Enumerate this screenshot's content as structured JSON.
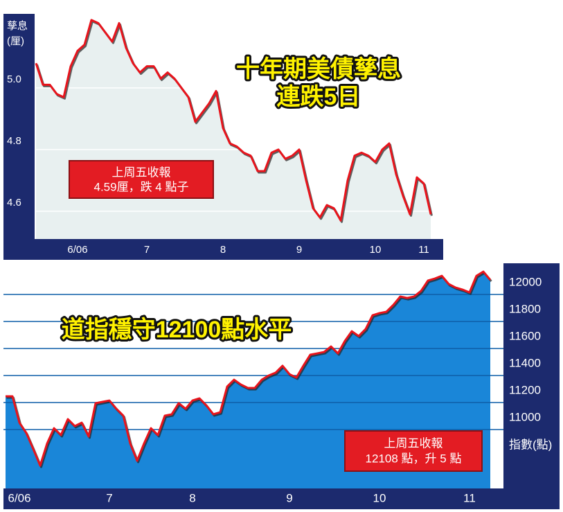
{
  "chart_data": [
    {
      "type": "line",
      "title": "十年期美債孳息",
      "subtitle": "連跌5日",
      "y_label": [
        "孳息",
        "(厘)"
      ],
      "annotation": [
        "上周五收報",
        "4.59厘，跌 4 點子"
      ],
      "categories": [
        null,
        null,
        null,
        null,
        null,
        null,
        "6/06",
        null,
        null,
        null,
        null,
        null,
        null,
        null,
        null,
        null,
        "7",
        null,
        null,
        null,
        null,
        null,
        null,
        null,
        null,
        null,
        null,
        "8",
        null,
        null,
        null,
        null,
        null,
        null,
        null,
        null,
        null,
        null,
        "9",
        null,
        null,
        null,
        null,
        null,
        null,
        null,
        null,
        null,
        null,
        "10",
        null,
        null,
        null,
        null,
        null,
        null,
        "11",
        null
      ],
      "series": [
        {
          "color": "#e8141c",
          "area_color": "#e8f0f0",
          "values": [
            5.08,
            5.01,
            5.01,
            4.98,
            4.97,
            5.07,
            5.12,
            5.14,
            5.22,
            5.21,
            5.18,
            5.15,
            5.21,
            5.13,
            5.08,
            5.05,
            5.07,
            5.07,
            5.03,
            5.05,
            5.03,
            5.0,
            4.97,
            4.89,
            4.92,
            4.95,
            4.99,
            4.87,
            4.82,
            4.81,
            4.79,
            4.78,
            4.73,
            4.73,
            4.79,
            4.8,
            4.77,
            4.78,
            4.8,
            4.7,
            4.61,
            4.58,
            4.62,
            4.61,
            4.57,
            4.7,
            4.78,
            4.79,
            4.78,
            4.76,
            4.8,
            4.82,
            4.72,
            4.65,
            4.59,
            4.71,
            4.69,
            4.59
          ]
        }
      ],
      "ylim": [
        4.51,
        5.24
      ],
      "yticks": [
        {
          "value": 5.0,
          "label": "5.0"
        },
        4.8,
        4.6
      ],
      "grid": true,
      "grid_color": "#ffffff"
    },
    {
      "type": "line",
      "title": "道指穩守12100點水平",
      "y_label": [
        "指數(點)"
      ],
      "annotation": [
        "上周五收報",
        "12108 點，升 5 點"
      ],
      "categories": [
        null,
        null,
        "6/06",
        null,
        null,
        null,
        null,
        null,
        null,
        null,
        null,
        null,
        null,
        null,
        null,
        "7",
        null,
        null,
        null,
        null,
        null,
        null,
        null,
        null,
        null,
        null,
        null,
        "8",
        null,
        null,
        null,
        null,
        null,
        null,
        null,
        null,
        null,
        null,
        null,
        null,
        null,
        "9",
        null,
        null,
        null,
        null,
        null,
        null,
        null,
        null,
        null,
        null,
        null,
        null,
        "10",
        null,
        null,
        null,
        null,
        null,
        null,
        null,
        null,
        null,
        null,
        null,
        null,
        "11",
        null,
        null,
        null
      ],
      "series": [
        {
          "color": "#e8141c",
          "area_color": "#1a86d8",
          "values": [
            11246,
            11246,
            11051,
            10974,
            10856,
            10733,
            10897,
            11010,
            10959,
            11077,
            11026,
            11051,
            10949,
            11195,
            11205,
            11215,
            11154,
            11103,
            10897,
            10769,
            10897,
            11010,
            10959,
            11103,
            11113,
            11195,
            11154,
            11215,
            11231,
            11179,
            11113,
            11128,
            11318,
            11369,
            11333,
            11308,
            11308,
            11369,
            11400,
            11421,
            11472,
            11410,
            11385,
            11472,
            11554,
            11564,
            11574,
            11615,
            11564,
            11656,
            11728,
            11692,
            11744,
            11846,
            11862,
            11872,
            11923,
            11985,
            11974,
            11985,
            12026,
            12103,
            12118,
            12138,
            12077,
            12051,
            12036,
            12015,
            12138,
            12169,
            12108
          ]
        }
      ],
      "ylim": [
        10564,
        12231
      ],
      "yticks": [
        12000,
        11800,
        11600,
        11400,
        11200,
        11000
      ],
      "grid": true,
      "grid_color": "#0e5ea8"
    }
  ]
}
